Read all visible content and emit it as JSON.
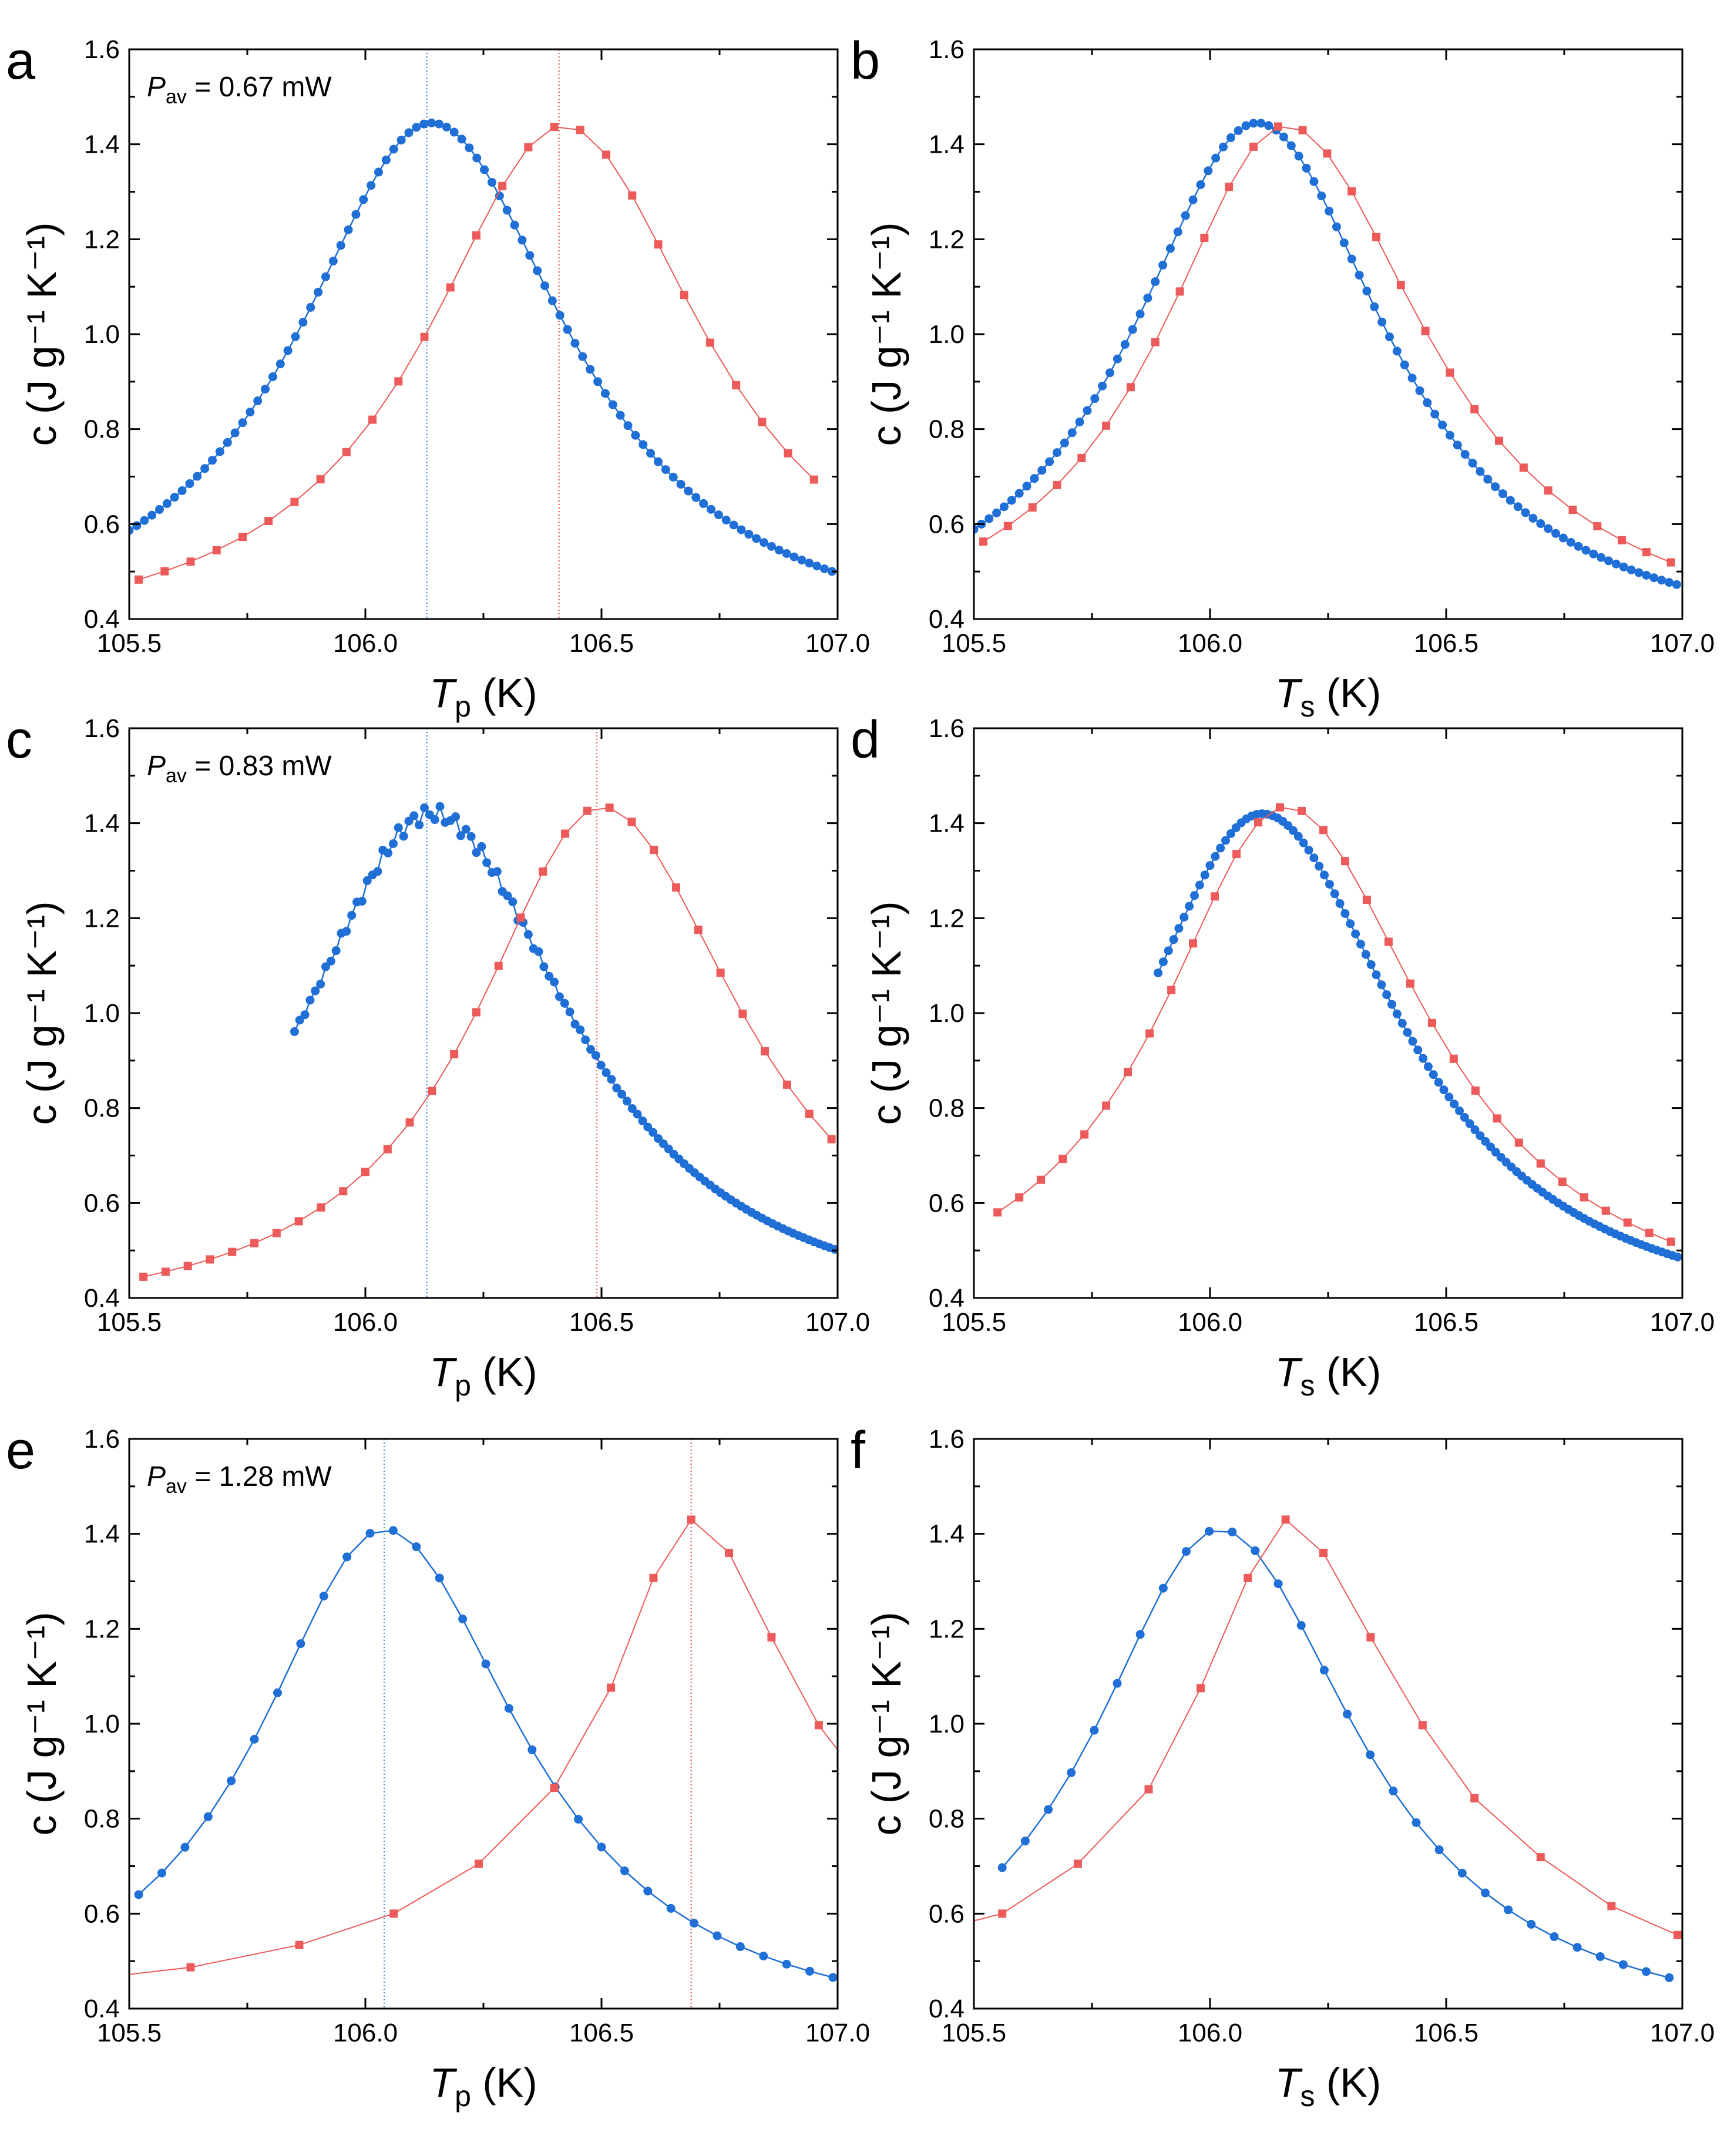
{
  "chart_data": [
    {
      "panel": "a",
      "type": "line",
      "annotation_symbol": "P",
      "annotation_sub": "av",
      "annotation_rest": " = 0.67 mW",
      "xlabel_symbol": "T",
      "xlabel_sub": "p",
      "xlabel_unit": " (K)",
      "ylabel": "c (J g⁻¹ K⁻¹)",
      "xlim": [
        105.5,
        107.0
      ],
      "ylim": [
        0.4,
        1.6
      ],
      "xticks": [
        105.5,
        106.0,
        106.5,
        107.0
      ],
      "xtick_labels": [
        "105.5",
        "106.0",
        "106.5",
        "107.0"
      ],
      "yticks": [
        0.4,
        0.6,
        0.8,
        1.0,
        1.2,
        1.4,
        1.6
      ],
      "ytick_labels": [
        "0.4",
        "0.6",
        "0.8",
        "1.0",
        "1.2",
        "1.4",
        "1.6"
      ],
      "vlines": [
        {
          "x": 106.13,
          "color": "#4f92e0"
        },
        {
          "x": 106.41,
          "color": "#ee6a6a"
        }
      ],
      "series": [
        {
          "name": "blue circles",
          "marker": "circle",
          "color": "#1f6fd6",
          "fit": "lorentz",
          "peak_x": 106.14,
          "peak_y": 1.445,
          "baseline": 0.33,
          "gamma_left": 0.35,
          "gamma_right": 0.36,
          "x_start": 105.5,
          "x_end": 107.0,
          "step": 0.016
        },
        {
          "name": "red squares",
          "marker": "square",
          "color": "#ec5a5a",
          "fit": "lorentz",
          "peak_x": 106.42,
          "peak_y": 1.44,
          "baseline": 0.33,
          "gamma_left": 0.36,
          "gamma_right": 0.37,
          "x_start": 105.52,
          "x_end": 107.0,
          "step": 0.055
        }
      ]
    },
    {
      "panel": "b",
      "type": "line",
      "xlabel_symbol": "T",
      "xlabel_sub": "s",
      "xlabel_unit": " (K)",
      "ylabel": "c (J g⁻¹ K⁻¹)",
      "xlim": [
        105.5,
        107.0
      ],
      "ylim": [
        0.4,
        1.6
      ],
      "xticks": [
        105.5,
        106.0,
        106.5,
        107.0
      ],
      "xtick_labels": [
        "105.5",
        "106.0",
        "106.5",
        "107.0"
      ],
      "yticks": [
        0.4,
        0.6,
        0.8,
        1.0,
        1.2,
        1.4,
        1.6
      ],
      "ytick_labels": [
        "0.4",
        "0.6",
        "0.8",
        "1.0",
        "1.2",
        "1.4",
        "1.6"
      ],
      "vlines": [],
      "series": [
        {
          "name": "blue circles",
          "marker": "circle",
          "color": "#1f6fd6",
          "fit": "lorentz",
          "peak_x": 106.1,
          "peak_y": 1.445,
          "baseline": 0.33,
          "gamma_left": 0.33,
          "gamma_right": 0.34,
          "x_start": 105.5,
          "x_end": 107.0,
          "step": 0.016
        },
        {
          "name": "red squares",
          "marker": "square",
          "color": "#ec5a5a",
          "fit": "lorentz",
          "peak_x": 106.16,
          "peak_y": 1.44,
          "baseline": 0.33,
          "gamma_left": 0.33,
          "gamma_right": 0.37,
          "x_start": 105.52,
          "x_end": 107.0,
          "step": 0.052
        }
      ]
    },
    {
      "panel": "c",
      "type": "line",
      "annotation_symbol": "P",
      "annotation_sub": "av",
      "annotation_rest": " = 0.83 mW",
      "xlabel_symbol": "T",
      "xlabel_sub": "p",
      "xlabel_unit": " (K)",
      "ylabel": "c (J g⁻¹ K⁻¹)",
      "xlim": [
        105.5,
        107.0
      ],
      "ylim": [
        0.4,
        1.6
      ],
      "xticks": [
        105.5,
        106.0,
        106.5,
        107.0
      ],
      "xtick_labels": [
        "105.5",
        "106.0",
        "106.5",
        "107.0"
      ],
      "yticks": [
        0.4,
        0.6,
        0.8,
        1.0,
        1.2,
        1.4,
        1.6
      ],
      "ytick_labels": [
        "0.4",
        "0.6",
        "0.8",
        "1.0",
        "1.2",
        "1.4",
        "1.6"
      ],
      "vlines": [
        {
          "x": 106.13,
          "color": "#4f92e0"
        },
        {
          "x": 106.49,
          "color": "#ee6a6a"
        }
      ],
      "series": [
        {
          "name": "blue circles",
          "marker": "circle",
          "color": "#1f6fd6",
          "fit": "lorentz",
          "peak_x": 106.14,
          "peak_y": 1.42,
          "baseline": 0.33,
          "gamma_left": 0.34,
          "gamma_right": 0.37,
          "x_start": 105.85,
          "x_end": 107.0,
          "step": 0.011,
          "jitter": 0.018
        },
        {
          "name": "red squares",
          "marker": "square",
          "color": "#ec5a5a",
          "fit": "lorentz",
          "peak_x": 106.5,
          "peak_y": 1.435,
          "baseline": 0.33,
          "gamma_left": 0.33,
          "gamma_right": 0.37,
          "x_start": 105.53,
          "x_end": 107.0,
          "step": 0.047
        }
      ]
    },
    {
      "panel": "d",
      "type": "line",
      "xlabel_symbol": "T",
      "xlabel_sub": "s",
      "xlabel_unit": " (K)",
      "ylabel": "c (J g⁻¹ K⁻¹)",
      "xlim": [
        105.5,
        107.0
      ],
      "ylim": [
        0.4,
        1.6
      ],
      "xticks": [
        105.5,
        106.0,
        106.5,
        107.0
      ],
      "xtick_labels": [
        "105.5",
        "106.0",
        "106.5",
        "107.0"
      ],
      "yticks": [
        0.4,
        0.6,
        0.8,
        1.0,
        1.2,
        1.4,
        1.6
      ],
      "ytick_labels": [
        "0.4",
        "0.6",
        "0.8",
        "1.0",
        "1.2",
        "1.4",
        "1.6"
      ],
      "vlines": [],
      "series": [
        {
          "name": "blue circles",
          "marker": "circle",
          "color": "#1f6fd6",
          "fit": "lorentz",
          "peak_x": 106.11,
          "peak_y": 1.42,
          "baseline": 0.33,
          "gamma_left": 0.33,
          "gamma_right": 0.36,
          "x_start": 105.89,
          "x_end": 107.0,
          "step": 0.011
        },
        {
          "name": "red squares",
          "marker": "square",
          "color": "#ec5a5a",
          "fit": "lorentz",
          "peak_x": 106.16,
          "peak_y": 1.435,
          "baseline": 0.33,
          "gamma_left": 0.33,
          "gamma_right": 0.37,
          "x_start": 105.55,
          "x_end": 107.0,
          "step": 0.046
        }
      ]
    },
    {
      "panel": "e",
      "type": "line",
      "annotation_symbol": "P",
      "annotation_sub": "av",
      "annotation_rest": " = 1.28 mW",
      "xlabel_symbol": "T",
      "xlabel_sub": "p",
      "xlabel_unit": " (K)",
      "ylabel": "c (J g⁻¹ K⁻¹)",
      "xlim": [
        105.5,
        107.0
      ],
      "ylim": [
        0.4,
        1.6
      ],
      "xticks": [
        105.5,
        106.0,
        106.5,
        107.0
      ],
      "xtick_labels": [
        "105.5",
        "106.0",
        "106.5",
        "107.0"
      ],
      "yticks": [
        0.4,
        0.6,
        0.8,
        1.0,
        1.2,
        1.4,
        1.6
      ],
      "ytick_labels": [
        "0.4",
        "0.6",
        "0.8",
        "1.0",
        "1.2",
        "1.4",
        "1.6"
      ],
      "vlines": [
        {
          "x": 106.04,
          "color": "#4f92e0"
        },
        {
          "x": 106.69,
          "color": "#ee6a6a"
        }
      ],
      "series": [
        {
          "name": "blue circles",
          "marker": "circle",
          "color": "#1f6fd6",
          "fit": "lorentz",
          "peak_x": 106.04,
          "peak_y": 1.41,
          "baseline": 0.33,
          "gamma_left": 0.33,
          "gamma_right": 0.36,
          "x_start": 105.52,
          "x_end": 106.99,
          "step": 0.049
        },
        {
          "name": "red squares",
          "marker": "square",
          "color": "#ec5a5a",
          "fit": "points",
          "x": [
            105.63,
            105.86,
            106.06,
            106.24,
            106.4,
            106.52,
            106.61,
            106.69,
            106.77,
            106.86,
            106.96
          ],
          "y": [
            0.487,
            0.534,
            0.6,
            0.705,
            0.865,
            1.076,
            1.307,
            1.43,
            1.36,
            1.182,
            0.997
          ],
          "line_x": [
            105.5,
            105.63,
            105.86,
            106.06,
            106.24,
            106.4,
            106.52,
            106.61,
            106.69,
            106.77,
            106.86,
            106.96,
            107.0
          ],
          "line_y": [
            0.472,
            0.487,
            0.534,
            0.6,
            0.705,
            0.865,
            1.076,
            1.307,
            1.43,
            1.36,
            1.182,
            0.997,
            0.945
          ]
        }
      ]
    },
    {
      "panel": "f",
      "type": "line",
      "xlabel_symbol": "T",
      "xlabel_sub": "s",
      "xlabel_unit": " (K)",
      "ylabel": "c (J g⁻¹ K⁻¹)",
      "xlim": [
        105.5,
        107.0
      ],
      "ylim": [
        0.4,
        1.6
      ],
      "xticks": [
        105.5,
        106.0,
        106.5,
        107.0
      ],
      "xtick_labels": [
        "105.5",
        "106.0",
        "106.5",
        "107.0"
      ],
      "yticks": [
        0.4,
        0.6,
        0.8,
        1.0,
        1.2,
        1.4,
        1.6
      ],
      "ytick_labels": [
        "0.4",
        "0.6",
        "0.8",
        "1.0",
        "1.2",
        "1.4",
        "1.6"
      ],
      "vlines": [],
      "series": [
        {
          "name": "blue circles",
          "marker": "circle",
          "color": "#1f6fd6",
          "fit": "lorentz",
          "peak_x": 106.02,
          "peak_y": 1.41,
          "baseline": 0.33,
          "gamma_left": 0.33,
          "gamma_right": 0.36,
          "x_start": 105.56,
          "x_end": 106.98,
          "step": 0.0487
        },
        {
          "name": "red squares",
          "marker": "square",
          "color": "#ec5a5a",
          "fit": "points",
          "x": [
            105.56,
            105.72,
            105.87,
            105.98,
            106.08,
            106.16,
            106.24,
            106.34,
            106.45,
            106.56,
            106.7,
            106.85,
            106.99
          ],
          "y": [
            0.6,
            0.705,
            0.862,
            1.075,
            1.307,
            1.43,
            1.36,
            1.182,
            0.997,
            0.843,
            0.719,
            0.616,
            0.555
          ],
          "line_x": [
            105.5,
            105.56,
            105.72,
            105.87,
            105.98,
            106.08,
            106.16,
            106.24,
            106.34,
            106.45,
            106.56,
            106.7,
            106.85,
            106.99,
            107.0
          ],
          "line_y": [
            0.585,
            0.6,
            0.705,
            0.862,
            1.075,
            1.307,
            1.43,
            1.36,
            1.182,
            0.997,
            0.843,
            0.719,
            0.616,
            0.555,
            0.552
          ]
        }
      ]
    }
  ]
}
